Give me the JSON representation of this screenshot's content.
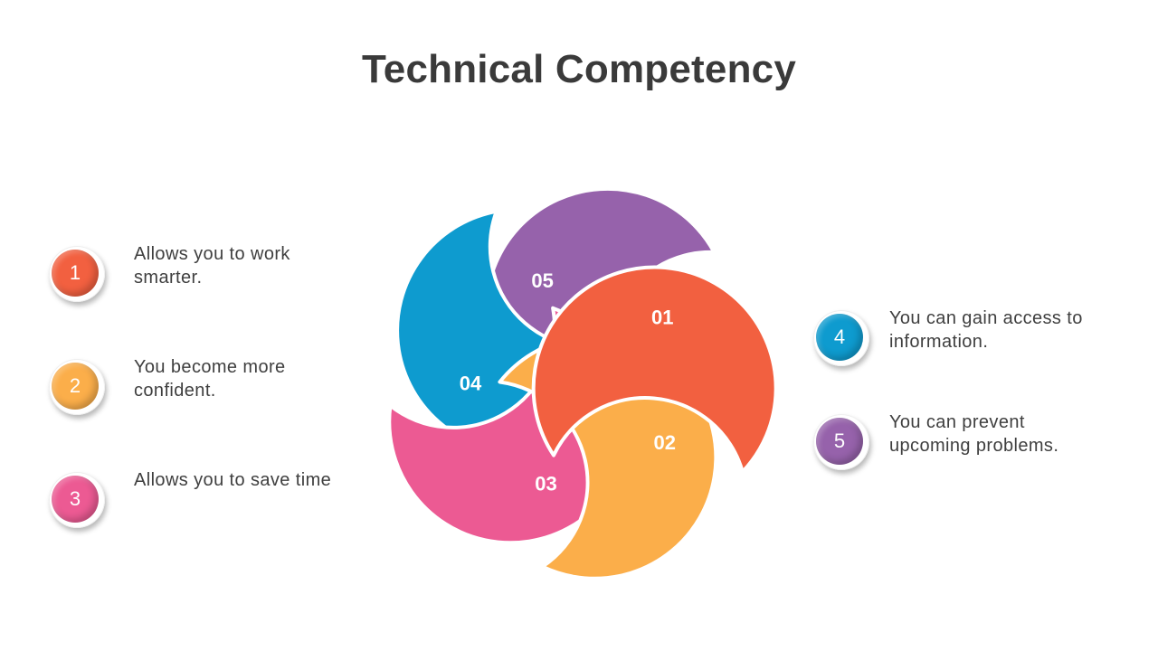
{
  "title": "Technical Competency",
  "segments": [
    {
      "label": "01",
      "color": "#F26040"
    },
    {
      "label": "02",
      "color": "#FBAE4A"
    },
    {
      "label": "03",
      "color": "#EC5A93"
    },
    {
      "label": "04",
      "color": "#0E9BCF"
    },
    {
      "label": "05",
      "color": "#9662AB"
    }
  ],
  "items": [
    {
      "number": "1",
      "text": "Allows you to work smarter.",
      "color": "#F26040"
    },
    {
      "number": "2",
      "text": "You become more confident.",
      "color": "#FBAE4A"
    },
    {
      "number": "3",
      "text": "Allows you to save time",
      "color": "#EC5A93"
    },
    {
      "number": "4",
      "text": "You can gain access to information.",
      "color": "#0E9BCF"
    },
    {
      "number": "5",
      "text": "You can prevent upcoming problems.",
      "color": "#9662AB"
    }
  ]
}
